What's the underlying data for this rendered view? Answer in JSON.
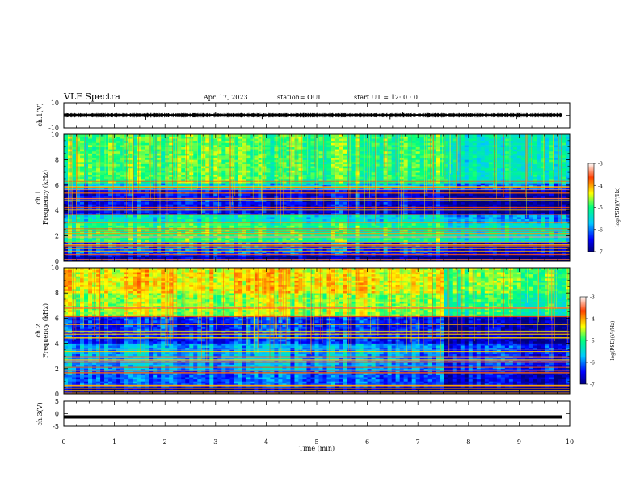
{
  "header": {
    "title": "VLF Spectra",
    "date": "Apr. 17, 2023",
    "station": "station= OUI",
    "start": "start  UT =  12: 0  : 0"
  },
  "chart_data": [
    {
      "type": "line",
      "id": "ch1-waveform",
      "ylabel": "ch.1(V)",
      "ylim": [
        -10,
        10
      ],
      "yticks": [
        "10",
        "-10"
      ],
      "xlim": [
        0,
        10
      ],
      "data_extent_min": [
        0,
        9.85
      ],
      "baseline": 0,
      "spikes": [
        {
          "t": 1.62,
          "v": -3.5
        },
        {
          "t": 3.0,
          "v": 2.5
        },
        {
          "t": 3.92,
          "v": -3.0
        },
        {
          "t": 6.45,
          "v": -3.2
        },
        {
          "t": 6.7,
          "v": 2.2
        },
        {
          "t": 8.95,
          "v": -3.0
        }
      ]
    },
    {
      "type": "heatmap",
      "id": "ch1-spectrogram",
      "ylabel": "ch.1",
      "ylabel2": "Frequency (kHz)",
      "ylim": [
        0,
        10
      ],
      "yticks": [
        "0",
        "2",
        "4",
        "6",
        "8",
        "10"
      ],
      "xlim": [
        0,
        10
      ],
      "colorbar": {
        "label": "log(PSD)(V²/Hz)",
        "ticks": [
          "-3",
          "-4",
          "-5",
          "-6",
          "-7"
        ],
        "range": [
          -7,
          -3
        ]
      },
      "bands": [
        {
          "f": [
            6.2,
            10
          ],
          "level": -4.9
        },
        {
          "f": [
            5.6,
            6.2
          ],
          "level": -5.6
        },
        {
          "f": [
            3.7,
            5.6
          ],
          "level": -6.5
        },
        {
          "f": [
            3.0,
            3.7
          ],
          "level": -5.4
        },
        {
          "f": [
            1.5,
            3.0
          ],
          "level": -5.0
        },
        {
          "f": [
            0.5,
            1.5
          ],
          "level": -6.2
        },
        {
          "f": [
            0,
            0.5
          ],
          "level": -6.8
        }
      ]
    },
    {
      "type": "heatmap",
      "id": "ch2-spectrogram",
      "ylabel": "ch.2",
      "ylabel2": "Frequency (kHz)",
      "ylim": [
        0,
        10
      ],
      "yticks": [
        "0",
        "2",
        "4",
        "6",
        "8",
        "10"
      ],
      "xlim": [
        0,
        10
      ],
      "colorbar": {
        "label": "log(PSD)(V²/Hz)",
        "ticks": [
          "-3",
          "-4",
          "-5",
          "-6",
          "-7"
        ],
        "range": [
          -7,
          -3
        ]
      },
      "bands": [
        {
          "f": [
            8.0,
            10
          ],
          "level": -4.3
        },
        {
          "f": [
            6.2,
            8.0
          ],
          "level": -4.6
        },
        {
          "f": [
            4.0,
            6.2
          ],
          "level": -6.3
        },
        {
          "f": [
            1.8,
            4.0
          ],
          "level": -5.8
        },
        {
          "f": [
            0.5,
            1.8
          ],
          "level": -6.1
        },
        {
          "f": [
            0,
            0.5
          ],
          "level": -6.9
        }
      ]
    },
    {
      "type": "line",
      "id": "ch3-waveform",
      "ylabel": "ch.3(V)",
      "ylim": [
        -5,
        5
      ],
      "yticks": [
        "5",
        "0",
        "-5"
      ],
      "xlim": [
        0,
        10
      ],
      "data_extent_min": [
        0,
        9.85
      ],
      "baseline": -1.3
    }
  ],
  "xaxis": {
    "label": "Time (min)",
    "ticks": [
      "0",
      "1",
      "2",
      "3",
      "4",
      "5",
      "6",
      "7",
      "8",
      "9",
      "10"
    ]
  }
}
